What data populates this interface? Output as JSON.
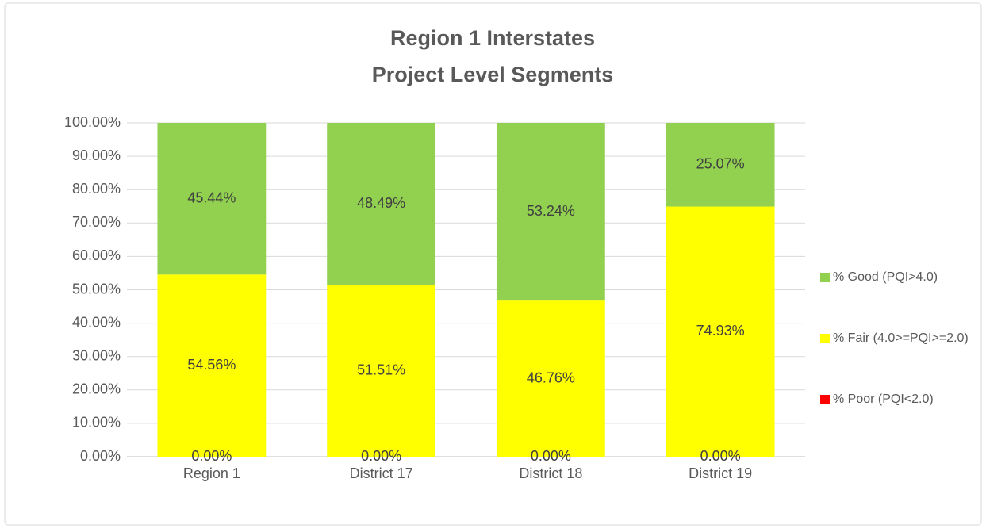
{
  "chart_data": {
    "type": "stacked_bar",
    "title": [
      "Region 1 Interstates",
      "Project Level Segments"
    ],
    "categories": [
      "Region 1",
      "District 17",
      "District 18",
      "District 19"
    ],
    "series": [
      {
        "name": "% Poor (PQI<2.0)",
        "color": "#ff0000",
        "values": [
          0,
          0,
          0,
          0
        ],
        "value_labels": [
          "0.00%",
          "0.00%",
          "0.00%",
          "0.00%"
        ]
      },
      {
        "name": "% Fair (4.0>=PQI>=2.0)",
        "color": "#ffff00",
        "values": [
          54.56,
          51.51,
          46.76,
          74.93
        ],
        "value_labels": [
          "54.56%",
          "51.51%",
          "46.76%",
          "74.93%"
        ]
      },
      {
        "name": "% Good (PQI>4.0)",
        "color": "#92d050",
        "values": [
          45.44,
          48.49,
          53.24,
          25.07
        ],
        "value_labels": [
          "45.44%",
          "48.49%",
          "53.24%",
          "25.07%"
        ]
      }
    ],
    "ylim": [
      0,
      100
    ],
    "yticks": [
      {
        "value": 0,
        "label": "0.00%"
      },
      {
        "value": 10,
        "label": "10.00%"
      },
      {
        "value": 20,
        "label": "20.00%"
      },
      {
        "value": 30,
        "label": "30.00%"
      },
      {
        "value": 40,
        "label": "40.00%"
      },
      {
        "value": 50,
        "label": "50.00%"
      },
      {
        "value": 60,
        "label": "60.00%"
      },
      {
        "value": 70,
        "label": "70.00%"
      },
      {
        "value": 80,
        "label": "80.00%"
      },
      {
        "value": 90,
        "label": "90.00%"
      },
      {
        "value": 100,
        "label": "100.00%"
      }
    ],
    "grid": true,
    "legend": "right"
  }
}
